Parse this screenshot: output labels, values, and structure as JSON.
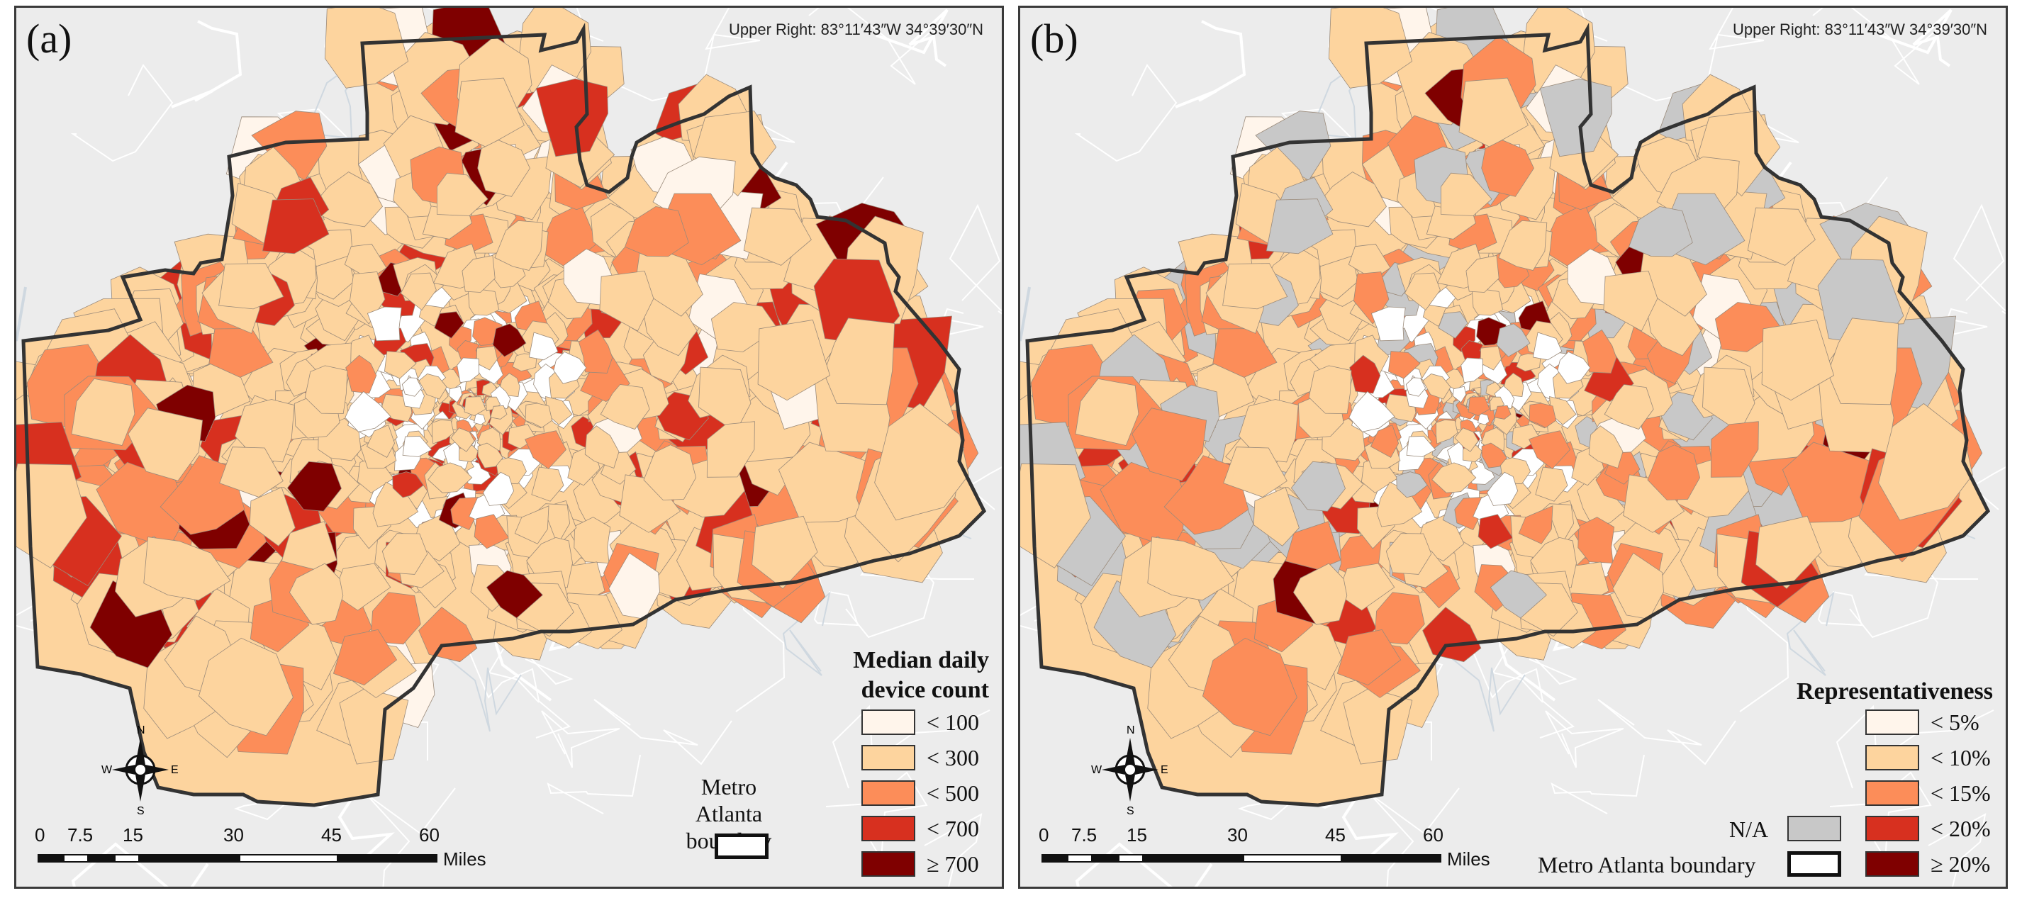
{
  "panels": [
    {
      "label": "(a)",
      "corner_text": "Upper Right: 83°11′43″W 34°39′30″N",
      "legend_title": [
        "Median daily",
        "device count"
      ],
      "legend_items": [
        {
          "label": "< 100",
          "color": "#fff5eb"
        },
        {
          "label": "< 300",
          "color": "#fdd49e"
        },
        {
          "label": "< 500",
          "color": "#fc8d59"
        },
        {
          "label": "< 700",
          "color": "#d7301f"
        },
        {
          "label": "≥ 700",
          "color": "#7f0000"
        }
      ],
      "boundary_label": "Metro Atlanta boundary",
      "scale_ticks": [
        "0",
        "7.5",
        "15",
        "30",
        "45",
        "60"
      ],
      "scale_unit": "Miles",
      "compass": {
        "n": "N",
        "s": "S",
        "e": "E",
        "w": "W"
      }
    },
    {
      "label": "(b)",
      "corner_text": "Upper Right: 83°11′43″W 34°39′30″N",
      "legend_title": [
        "Representativeness"
      ],
      "legend_items": [
        {
          "label": "< 5%",
          "color": "#fff5eb"
        },
        {
          "label": "< 10%",
          "color": "#fdd49e"
        },
        {
          "label": "< 15%",
          "color": "#fc8d59"
        },
        {
          "label": "< 20%",
          "color": "#d7301f"
        },
        {
          "label": "≥ 20%",
          "color": "#7f0000"
        }
      ],
      "na_label": "N/A",
      "na_color": "#c8c8c8",
      "boundary_label": "Metro Atlanta boundary",
      "scale_ticks": [
        "0",
        "7.5",
        "15",
        "30",
        "45",
        "60"
      ],
      "scale_unit": "Miles",
      "compass": {
        "n": "N",
        "s": "S",
        "e": "E",
        "w": "W"
      }
    }
  ],
  "colors": {
    "background": "#ececec",
    "base_fill": "#fdd49e",
    "tract_line": "#9a8a7a",
    "boundary": "#333333"
  }
}
